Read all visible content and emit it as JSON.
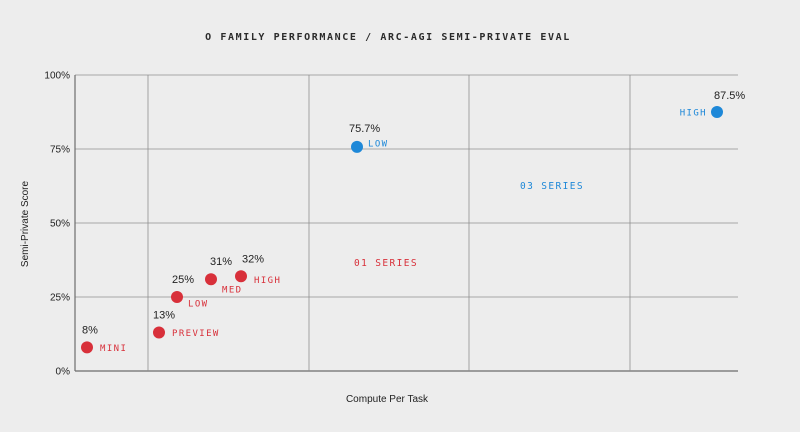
{
  "chart_data": {
    "type": "scatter",
    "title": "O FAMILY PERFORMANCE / ARC-AGI SEMI-PRIVATE EVAL",
    "xlabel": "Compute Per Task",
    "ylabel": "Semi-Private Score",
    "ylim": [
      0,
      100
    ],
    "yticks": [
      {
        "value": 0,
        "label": "0%"
      },
      {
        "value": 25,
        "label": "25%"
      },
      {
        "value": 50,
        "label": "50%"
      },
      {
        "value": 75,
        "label": "75%"
      },
      {
        "value": 100,
        "label": "100%"
      }
    ],
    "grid": true,
    "series": [
      {
        "name": "01 SERIES",
        "color": "#d8303a",
        "points": [
          {
            "label": "MINI",
            "value_label": "8%",
            "y": 8
          },
          {
            "label": "PREVIEW",
            "value_label": "13%",
            "y": 13
          },
          {
            "label": "LOW",
            "value_label": "25%",
            "y": 25
          },
          {
            "label": "MED",
            "value_label": "31%",
            "y": 31
          },
          {
            "label": "HIGH",
            "value_label": "32%",
            "y": 32
          }
        ]
      },
      {
        "name": "03 SERIES",
        "color": "#1e88d8",
        "points": [
          {
            "label": "LOW",
            "value_label": "75.7%",
            "y": 75.7
          },
          {
            "label": "HIGH",
            "value_label": "87.5%",
            "y": 87.5
          }
        ]
      }
    ]
  }
}
